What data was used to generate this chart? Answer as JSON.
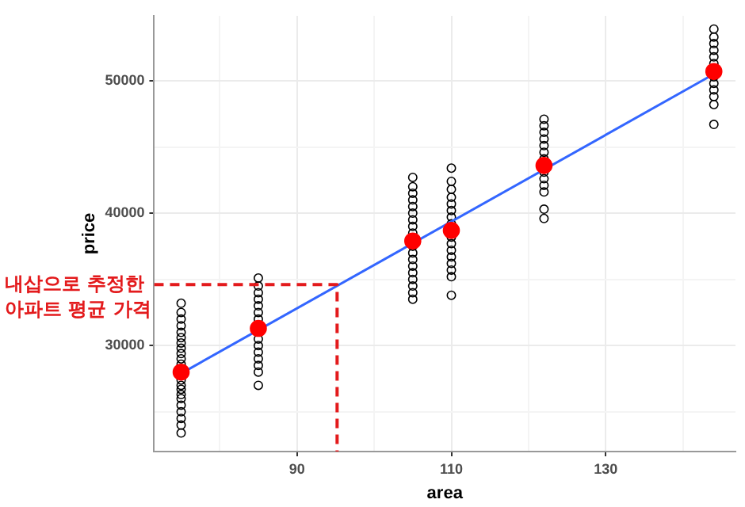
{
  "chart_data": {
    "type": "scatter",
    "xlabel": "area",
    "ylabel": "price",
    "xlim": [
      71.5,
      146.8
    ],
    "ylim": [
      22000,
      54900
    ],
    "xticks": [
      {
        "value": 80,
        "label": null
      },
      90,
      {
        "value": 100,
        "label": null
      },
      110,
      {
        "value": 120,
        "label": null
      },
      130,
      {
        "value": 140,
        "label": null
      }
    ],
    "yticks": [
      {
        "value": 25000,
        "label": null
      },
      30000,
      {
        "value": 35000,
        "label": null
      },
      40000,
      {
        "value": 45000,
        "label": null
      },
      50000
    ],
    "grid": true,
    "legend": false,
    "marker": "circle",
    "annotations": [
      "내삽으로 추정한\n아파트 평균 가격"
    ],
    "series": [
      {
        "color": "#000000",
        "x": [
          75,
          75,
          75,
          75,
          75,
          75,
          75,
          75,
          75,
          75,
          75,
          75,
          75,
          75,
          75,
          75,
          75,
          75,
          75,
          75,
          75,
          85,
          85,
          85,
          85,
          85,
          85,
          85,
          85,
          85,
          85,
          85,
          85,
          85,
          85,
          105,
          105,
          105,
          105,
          105,
          105,
          105,
          105,
          105,
          105,
          105,
          105,
          105,
          105,
          105,
          105,
          105,
          105,
          110,
          110,
          110,
          110,
          110,
          110,
          110,
          110,
          110,
          110,
          110,
          110,
          110,
          110,
          110,
          110,
          122,
          122,
          122,
          122,
          122,
          122,
          122,
          122,
          122,
          122,
          122,
          122,
          122,
          144,
          144,
          144,
          144,
          144,
          144,
          144,
          144,
          144,
          144,
          144,
          144
        ],
        "values": [
          23400,
          24000,
          24500,
          25000,
          25500,
          26000,
          26300,
          26700,
          27000,
          27400,
          28600,
          29000,
          29400,
          29800,
          30200,
          30600,
          31000,
          31500,
          32000,
          32500,
          33200,
          27000,
          28000,
          28500,
          29000,
          29500,
          30000,
          30500,
          32000,
          32500,
          33000,
          33500,
          34000,
          34500,
          35100,
          33500,
          34000,
          34500,
          35000,
          35500,
          36000,
          36500,
          37000,
          37500,
          38500,
          39000,
          39500,
          40000,
          40500,
          41000,
          41500,
          42000,
          42700,
          33800,
          35200,
          35700,
          36200,
          36700,
          37200,
          37700,
          38200,
          39200,
          39700,
          40200,
          40700,
          41200,
          41800,
          42400,
          43400,
          39600,
          40300,
          41600,
          42100,
          42600,
          43100,
          44100,
          44600,
          45100,
          45600,
          46100,
          46600,
          47100,
          46700,
          48200,
          48800,
          49300,
          49800,
          50300,
          51300,
          51800,
          52300,
          52800,
          53300,
          53900
        ]
      },
      {
        "type": "line",
        "color": "#3366ff",
        "x": [
          75,
          144
        ],
        "values": [
          27900,
          50500
        ],
        "marker": "none"
      },
      {
        "color": "#ff0000",
        "x": [
          75,
          85,
          105,
          110,
          122,
          144
        ],
        "values": [
          28000,
          31300,
          37900,
          38700,
          43600,
          50700
        ]
      },
      {
        "type": "line",
        "color": "#e31a1c",
        "line_style": "dashed",
        "marker": "none",
        "x": [
          71.5,
          95.2,
          95.2
        ],
        "values": [
          34600,
          34600,
          22000
        ]
      }
    ]
  }
}
